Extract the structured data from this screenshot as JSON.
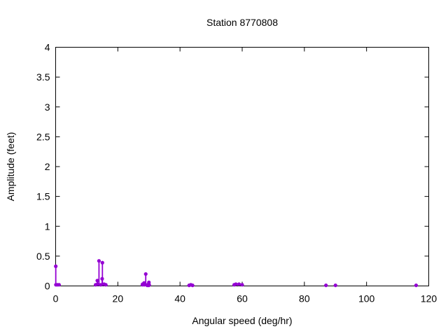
{
  "page": {
    "background_color": "#ffffff",
    "text_color": "#000000"
  },
  "chart_data": {
    "type": "scatter",
    "style": "impulses-with-points",
    "title": "Station 8770808",
    "xlabel": "Angular speed (deg/hr)",
    "ylabel": "Amplitude (feet)",
    "xlim": [
      0,
      120
    ],
    "ylim": [
      0,
      4
    ],
    "grid": false,
    "legend": "none",
    "point_color": "#9400d3",
    "axis_color": "#000000",
    "xticks": [
      {
        "v": 0,
        "label": "0"
      },
      {
        "v": 20,
        "label": "20"
      },
      {
        "v": 40,
        "label": "40"
      },
      {
        "v": 60,
        "label": "60"
      },
      {
        "v": 80,
        "label": "80"
      },
      {
        "v": 100,
        "label": "100"
      },
      {
        "v": 120,
        "label": "120"
      }
    ],
    "yticks": [
      {
        "v": 0,
        "label": "0"
      },
      {
        "v": 0.5,
        "label": "0.5"
      },
      {
        "v": 1,
        "label": "1"
      },
      {
        "v": 1.5,
        "label": "1.5"
      },
      {
        "v": 2,
        "label": "2"
      },
      {
        "v": 2.5,
        "label": "2.5"
      },
      {
        "v": 3,
        "label": "3"
      },
      {
        "v": 3.5,
        "label": "3.5"
      },
      {
        "v": 4,
        "label": "4"
      }
    ],
    "points": [
      {
        "x": 0.04,
        "y": 0.33
      },
      {
        "x": 0.08,
        "y": 0.02
      },
      {
        "x": 0.54,
        "y": 0.02
      },
      {
        "x": 1.1,
        "y": 0.02
      },
      {
        "x": 12.85,
        "y": 0.02
      },
      {
        "x": 13.4,
        "y": 0.09
      },
      {
        "x": 13.47,
        "y": 0.03
      },
      {
        "x": 13.94,
        "y": 0.42
      },
      {
        "x": 14.5,
        "y": 0.02
      },
      {
        "x": 14.96,
        "y": 0.12
      },
      {
        "x": 15.04,
        "y": 0.39
      },
      {
        "x": 15.59,
        "y": 0.03
      },
      {
        "x": 16.14,
        "y": 0.02
      },
      {
        "x": 27.9,
        "y": 0.02
      },
      {
        "x": 27.97,
        "y": 0.03
      },
      {
        "x": 28.44,
        "y": 0.05
      },
      {
        "x": 28.51,
        "y": 0.02
      },
      {
        "x": 28.98,
        "y": 0.2
      },
      {
        "x": 29.46,
        "y": 0.01
      },
      {
        "x": 29.53,
        "y": 0.02
      },
      {
        "x": 29.96,
        "y": 0.01
      },
      {
        "x": 30.0,
        "y": 0.06
      },
      {
        "x": 30.08,
        "y": 0.02
      },
      {
        "x": 42.93,
        "y": 0.01
      },
      {
        "x": 43.48,
        "y": 0.02
      },
      {
        "x": 44.03,
        "y": 0.01
      },
      {
        "x": 57.42,
        "y": 0.02
      },
      {
        "x": 57.97,
        "y": 0.03
      },
      {
        "x": 58.98,
        "y": 0.03
      },
      {
        "x": 60.0,
        "y": 0.02
      },
      {
        "x": 86.95,
        "y": 0.01
      },
      {
        "x": 90.0,
        "y": 0.01
      },
      {
        "x": 115.94,
        "y": 0.01
      }
    ]
  }
}
